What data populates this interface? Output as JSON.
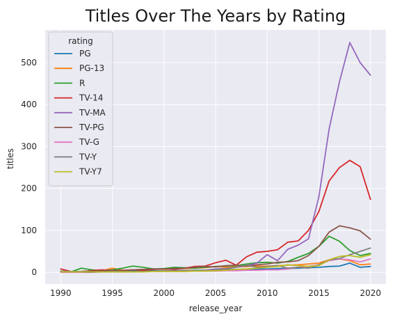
{
  "chart_data": {
    "type": "line",
    "title": "Titles Over The Years by Rating",
    "xlabel": "release_year",
    "ylabel": "titles",
    "xlim": [
      1988.5,
      2021.5
    ],
    "ylim": [
      -28,
      578
    ],
    "xticks": [
      "1990",
      "1995",
      "2000",
      "2005",
      "2010",
      "2015",
      "2020"
    ],
    "yticks": [
      "0",
      "100",
      "200",
      "300",
      "400",
      "500"
    ],
    "grid": true,
    "legend_title": "rating",
    "legend_position": "top-left",
    "background": "#eaeaf2",
    "x": [
      1990,
      1991,
      1992,
      1993,
      1994,
      1995,
      1996,
      1997,
      1998,
      1999,
      2000,
      2001,
      2002,
      2003,
      2004,
      2005,
      2006,
      2007,
      2008,
      2009,
      2010,
      2011,
      2012,
      2013,
      2014,
      2015,
      2016,
      2017,
      2018,
      2019,
      2020
    ],
    "series": [
      {
        "name": "PG",
        "color": "#1f77b4",
        "values": [
          2,
          1,
          1,
          2,
          3,
          2,
          2,
          3,
          3,
          4,
          3,
          4,
          4,
          5,
          5,
          6,
          6,
          7,
          7,
          8,
          8,
          9,
          9,
          10,
          11,
          12,
          14,
          15,
          22,
          12,
          14
        ]
      },
      {
        "name": "PG-13",
        "color": "#ff7f0e",
        "values": [
          1,
          1,
          2,
          3,
          4,
          10,
          5,
          6,
          7,
          8,
          7,
          8,
          9,
          10,
          11,
          14,
          12,
          13,
          14,
          15,
          15,
          16,
          17,
          18,
          20,
          22,
          30,
          32,
          28,
          18,
          20
        ]
      },
      {
        "name": "R",
        "color": "#2ca02c",
        "values": [
          2,
          1,
          10,
          6,
          4,
          6,
          10,
          15,
          12,
          8,
          9,
          12,
          11,
          10,
          12,
          14,
          15,
          16,
          20,
          23,
          24,
          22,
          26,
          36,
          45,
          62,
          86,
          74,
          52,
          40,
          45
        ]
      },
      {
        "name": "TV-14",
        "color": "#d62728",
        "values": [
          8,
          2,
          2,
          4,
          6,
          4,
          5,
          6,
          5,
          7,
          8,
          7,
          10,
          14,
          15,
          23,
          29,
          17,
          37,
          48,
          50,
          54,
          72,
          75,
          100,
          145,
          218,
          250,
          267,
          252,
          174
        ]
      },
      {
        "name": "TV-MA",
        "color": "#9467bd",
        "values": [
          0,
          0,
          0,
          0,
          1,
          1,
          1,
          2,
          2,
          3,
          3,
          3,
          4,
          4,
          5,
          8,
          9,
          12,
          16,
          22,
          42,
          28,
          55,
          65,
          80,
          180,
          342,
          455,
          548,
          500,
          470
        ]
      },
      {
        "name": "TV-PG",
        "color": "#8c564b",
        "values": [
          1,
          1,
          2,
          3,
          4,
          5,
          4,
          6,
          7,
          8,
          8,
          9,
          10,
          12,
          14,
          13,
          16,
          17,
          15,
          18,
          20,
          24,
          25,
          28,
          40,
          62,
          96,
          111,
          106,
          99,
          79
        ]
      },
      {
        "name": "TV-G",
        "color": "#e377c2",
        "values": [
          0,
          0,
          0,
          1,
          1,
          1,
          1,
          1,
          2,
          2,
          2,
          2,
          2,
          3,
          3,
          3,
          4,
          4,
          5,
          5,
          6,
          6,
          8,
          12,
          14,
          18,
          28,
          32,
          30,
          25,
          32
        ]
      },
      {
        "name": "TV-Y",
        "color": "#7f7f7f",
        "values": [
          3,
          2,
          2,
          1,
          1,
          2,
          2,
          2,
          2,
          3,
          3,
          4,
          4,
          5,
          4,
          6,
          8,
          12,
          17,
          12,
          14,
          16,
          10,
          12,
          10,
          18,
          30,
          33,
          42,
          50,
          58
        ]
      },
      {
        "name": "TV-Y7",
        "color": "#bcbd22",
        "values": [
          1,
          1,
          1,
          1,
          1,
          1,
          1,
          1,
          1,
          2,
          2,
          2,
          2,
          3,
          3,
          4,
          5,
          7,
          8,
          10,
          12,
          14,
          18,
          16,
          14,
          16,
          30,
          38,
          40,
          36,
          42
        ]
      }
    ]
  }
}
